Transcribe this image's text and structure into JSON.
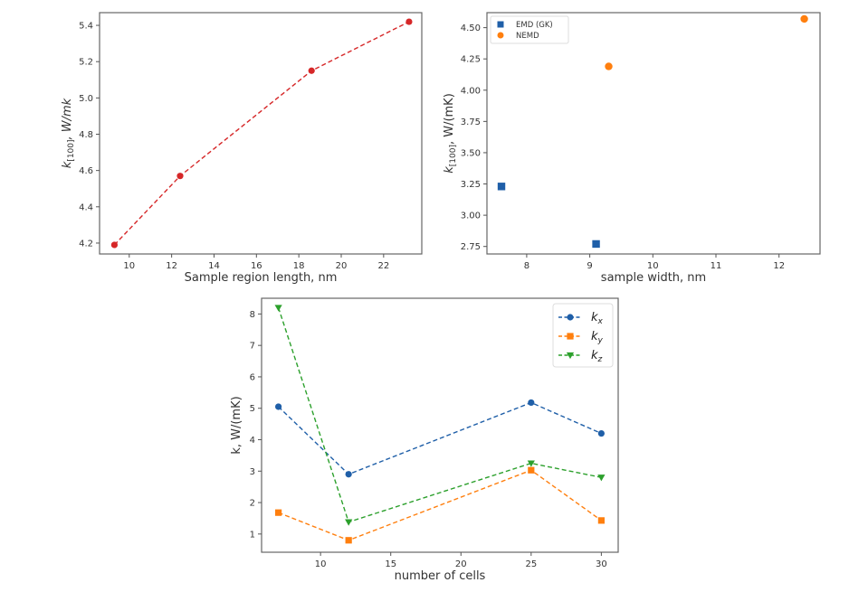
{
  "chart_data": [
    {
      "type": "line",
      "title": "",
      "xlabel": "Sample region length, nm",
      "ylabel": "k[100], W/mk",
      "ylabel_main": "k",
      "ylabel_sub": "[100]",
      "ylabel_rest": ", W/mk",
      "xlim": [
        8.6,
        23.8
      ],
      "ylim": [
        4.14,
        5.47
      ],
      "xticks": [
        10,
        12,
        14,
        16,
        18,
        20,
        22
      ],
      "yticks": [
        4.2,
        4.4,
        4.6,
        4.8,
        5.0,
        5.2,
        5.4
      ],
      "ytick_labels": [
        "4.2",
        "4.4",
        "4.6",
        "4.8",
        "5.0",
        "5.2",
        "5.4"
      ],
      "grid": false,
      "series": [
        {
          "name": "k[100]",
          "color": "#d62728",
          "marker": "circle",
          "linestyle": "dashed",
          "x": [
            9.3,
            12.4,
            18.6,
            23.2
          ],
          "y": [
            4.19,
            4.57,
            5.15,
            5.42
          ]
        }
      ]
    },
    {
      "type": "scatter",
      "title": "",
      "xlabel": "sample width, nm",
      "ylabel": "k[100], W/(mK)",
      "ylabel_main": "k",
      "ylabel_sub": "[100]",
      "ylabel_rest": ", W/(mK)",
      "xlim": [
        7.37,
        12.65
      ],
      "ylim": [
        2.69,
        4.62
      ],
      "xticks": [
        8,
        9,
        10,
        11,
        12
      ],
      "yticks": [
        2.75,
        3.0,
        3.25,
        3.5,
        3.75,
        4.0,
        4.25,
        4.5
      ],
      "ytick_labels": [
        "2.75",
        "3.00",
        "3.25",
        "3.50",
        "3.75",
        "4.00",
        "4.25",
        "4.50"
      ],
      "grid": false,
      "legend_position": "top-left",
      "series": [
        {
          "name": "EMD (GK)",
          "color": "#1f5fa8",
          "marker": "square",
          "x": [
            7.6,
            9.1
          ],
          "y": [
            3.23,
            2.77
          ]
        },
        {
          "name": "NEMD",
          "color": "#ff7f0e",
          "marker": "circle",
          "x": [
            9.3,
            12.4
          ],
          "y": [
            4.19,
            4.57
          ]
        }
      ]
    },
    {
      "type": "line",
      "title": "",
      "xlabel": "number of cells",
      "ylabel": "k, W/(mK)",
      "xlim": [
        5.8,
        31.2
      ],
      "ylim": [
        0.42,
        8.5
      ],
      "xticks": [
        10,
        15,
        20,
        25,
        30
      ],
      "yticks": [
        1,
        2,
        3,
        4,
        5,
        6,
        7,
        8
      ],
      "grid": false,
      "legend_position": "top-right",
      "series": [
        {
          "name": "kx",
          "main": "k",
          "sub": "x",
          "color": "#1f5fa8",
          "marker": "circle",
          "linestyle": "dashed",
          "x": [
            7,
            12,
            25,
            30
          ],
          "y": [
            5.05,
            2.9,
            5.18,
            4.2
          ]
        },
        {
          "name": "ky",
          "main": "k",
          "sub": "y",
          "color": "#ff7f0e",
          "marker": "square",
          "linestyle": "dashed",
          "x": [
            7,
            12,
            25,
            30
          ],
          "y": [
            1.68,
            0.8,
            3.03,
            1.43
          ]
        },
        {
          "name": "kz",
          "main": "k",
          "sub": "z",
          "color": "#2ca02c",
          "marker": "triangle-down",
          "linestyle": "dashed",
          "x": [
            7,
            12,
            25,
            30
          ],
          "y": [
            8.2,
            1.38,
            3.25,
            2.8
          ]
        }
      ]
    }
  ]
}
